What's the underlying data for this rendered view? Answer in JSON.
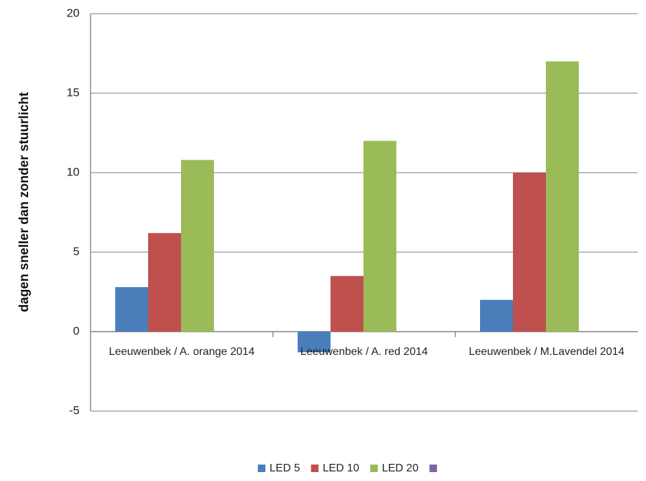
{
  "chart_data": {
    "type": "bar",
    "title": "",
    "xlabel": "",
    "ylabel": "dagen sneller dan zonder stuurlicht",
    "ylim": [
      -5,
      20
    ],
    "yticks": [
      -5,
      0,
      5,
      10,
      15,
      20
    ],
    "grid": true,
    "legend_position": "bottom",
    "categories": [
      "Leeuwenbek / A. orange 2014",
      "Leeuwenbek / A. red 2014",
      "Leeuwenbek / M.Lavendel 2014"
    ],
    "series": [
      {
        "name": "LED 5",
        "color": "#4a7ebb",
        "values": [
          2.8,
          -1.3,
          2.0
        ]
      },
      {
        "name": "LED 10",
        "color": "#c0504d",
        "values": [
          6.2,
          3.5,
          10.0
        ]
      },
      {
        "name": "LED 20",
        "color": "#9bbb59",
        "values": [
          10.8,
          12.0,
          17.0
        ]
      },
      {
        "name": "",
        "color": "#8064a2",
        "values": [
          0,
          0,
          0
        ]
      }
    ]
  }
}
